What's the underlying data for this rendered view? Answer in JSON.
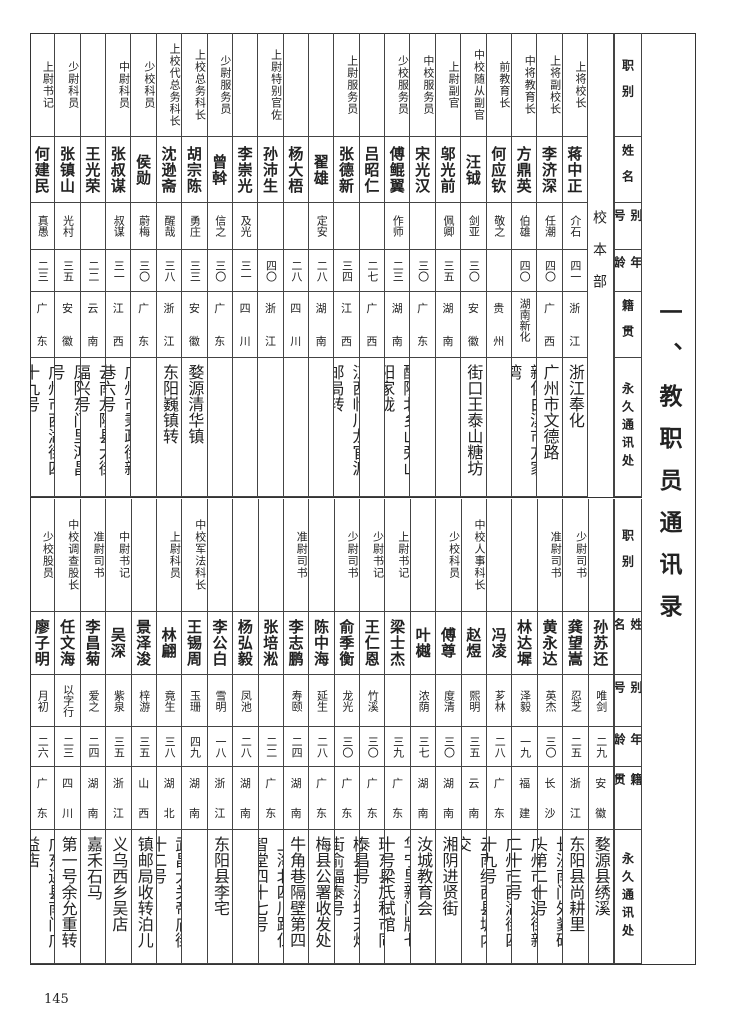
{
  "title": "一、教职员通讯录",
  "department": "校本部",
  "page_number": "145",
  "headers": [
    "职别",
    "姓名",
    "别号",
    "年龄",
    "籍贯",
    "永久通讯处"
  ],
  "top_rows": [
    {
      "job": "上将校长",
      "name": "蒋中正",
      "alias": "介石",
      "age": "四一",
      "origin": "浙江",
      "address": "浙江奉化"
    },
    {
      "job": "上将副校长",
      "name": "李济深",
      "alias": "任潮",
      "age": "四〇",
      "origin": "广西",
      "address": "广州市文德路"
    },
    {
      "job": "中将教育长",
      "name": "方鼎英",
      "alias": "伯雄",
      "age": "四〇",
      "origin": "湖南新化",
      "address": "新化白溪市方家湾"
    },
    {
      "job": "前教育长",
      "name": "何应钦",
      "alias": "敬之",
      "age": "",
      "origin": "贵州",
      "address": ""
    },
    {
      "job": "中校随从副官",
      "name": "汪钺",
      "alias": "剑亚",
      "age": "三〇",
      "origin": "安徽",
      "address": "南京城南唐福大街口王泰山糖坊转"
    },
    {
      "job": "上尉副官",
      "name": "邬光前",
      "alias": "佩卿",
      "age": "三五",
      "origin": "湖南",
      "address": ""
    },
    {
      "job": "中校服务员",
      "name": "宋光汉",
      "alias": "",
      "age": "三〇",
      "origin": "广东",
      "address": ""
    },
    {
      "job": "少校服务员",
      "name": "傅鲲翼",
      "alias": "作师",
      "age": "二三",
      "origin": "湖南",
      "address": "醴陵北乡山旁山阳家垅"
    },
    {
      "job": "",
      "name": "吕昭仁",
      "alias": "",
      "age": "二七",
      "origin": "广西",
      "address": ""
    },
    {
      "job": "上尉服务员",
      "name": "张德新",
      "alias": "",
      "age": "三四",
      "origin": "江西",
      "address": "江西临川龙官渡邮局转"
    },
    {
      "job": "",
      "name": "翟雄",
      "alias": "定安",
      "age": "二八",
      "origin": "湖南",
      "address": ""
    },
    {
      "job": "",
      "name": "杨大梧",
      "alias": "",
      "age": "二八",
      "origin": "四川",
      "address": ""
    },
    {
      "job": "上尉特别官佐",
      "name": "孙沛生",
      "alias": "",
      "age": "四〇",
      "origin": "浙江",
      "address": ""
    },
    {
      "job": "",
      "name": "李崇光",
      "alias": "及光",
      "age": "三一",
      "origin": "四川",
      "address": ""
    },
    {
      "job": "少尉服务员",
      "name": "曾斡",
      "alias": "信之",
      "age": "三〇",
      "origin": "广东",
      "address": ""
    },
    {
      "job": "上校总务科长",
      "name": "胡宗陈",
      "alias": "勇庄",
      "age": "三三",
      "origin": "安徽",
      "address": "婺源清华镇"
    },
    {
      "job": "上校代总务科长",
      "name": "沈逊斋",
      "alias": "醒哉",
      "age": "三八",
      "origin": "浙江",
      "address": "东阳巍镇转"
    },
    {
      "job": "少校科员",
      "name": "侯勋",
      "alias": "蔚梅",
      "age": "三〇",
      "origin": "广东",
      "address": ""
    },
    {
      "job": "中尉科员",
      "name": "张叔谋",
      "alias": "叔谋",
      "age": "三一",
      "origin": "江西",
      "address": "广州市秉政街新巷六号"
    },
    {
      "job": "",
      "name": "王光荣",
      "alias": "",
      "age": "二二",
      "origin": "云南",
      "address": "云南龙陵县大街福兴号"
    },
    {
      "job": "少尉科员",
      "name": "张镇山",
      "alias": "光村",
      "age": "三五",
      "origin": "安徽",
      "address": "凤阳东门里鸿昌号"
    },
    {
      "job": "上尉书记",
      "name": "何建民",
      "alias": "真愚",
      "age": "二三",
      "origin": "广东",
      "address": "广州市西湖街四十九号"
    }
  ],
  "bottom_rows": [
    {
      "job": "",
      "name": "孙苏还",
      "alias": "唯剑",
      "age": "二九",
      "origin": "安徽",
      "address": "婺源县绣溪"
    },
    {
      "job": "少尉司书",
      "name": "龚望嵩",
      "alias": "忍芝",
      "age": "二五",
      "origin": "浙江",
      "address": "东阳县尚耕里"
    },
    {
      "job": "准尉司书",
      "name": "黄永达",
      "alias": "英杰",
      "age": "三〇",
      "origin": "长沙",
      "address": "长沙南门外粪码头第二十号"
    },
    {
      "job": "",
      "name": "林达墀",
      "alias": "泽毅",
      "age": "一九",
      "origin": "福建",
      "address": "广州市仓边街新二十三号"
    },
    {
      "job": "",
      "name": "冯凌",
      "alias": "芗林",
      "age": "二八",
      "origin": "广东",
      "address": "广州市西湖街四十九号"
    },
    {
      "job": "中校人事科长",
      "name": "赵煜",
      "alias": "熙明",
      "age": "三五",
      "origin": "云南",
      "address": "云南维西县城内交"
    },
    {
      "job": "少校科员",
      "name": "傅尊",
      "alias": "度清",
      "age": "三〇",
      "origin": "湖南",
      "address": "湘阴进贤街"
    },
    {
      "job": "",
      "name": "叶樾",
      "alias": "浓荫",
      "age": "三七",
      "origin": "湖南",
      "address": "汝城教育会"
    },
    {
      "job": "上尉书记",
      "name": "梁士杰",
      "alias": "",
      "age": "三九",
      "origin": "广东",
      "address": "华宁里新门牌七十号梁氏试馆"
    },
    {
      "job": "少尉书记",
      "name": "王仁恩",
      "alias": "竹溪",
      "age": "三〇",
      "origin": "广东",
      "address": "琼东县加积市同泰昌号"
    },
    {
      "job": "少尉司书",
      "name": "俞季衡",
      "alias": "龙光",
      "age": "三〇",
      "origin": "广东",
      "address": "梅县长沙圩天灯街俞福泰号"
    },
    {
      "job": "",
      "name": "陈中海",
      "alias": "延生",
      "age": "二八",
      "origin": "广东",
      "address": "梅县公署收发处"
    },
    {
      "job": "准尉司书",
      "name": "李志鹏",
      "alias": "寿颐",
      "age": "二四",
      "origin": "湖南",
      "address": "湘阴县镇朔门大牛角巷隔壁第四号"
    },
    {
      "job": "",
      "name": "张培淞",
      "alias": "",
      "age": "二二",
      "origin": "广东",
      "address": "上海北四川路仁智堂四十七号"
    },
    {
      "job": "",
      "name": "杨弘毅",
      "alias": "凤池",
      "age": "二八",
      "origin": "湖南",
      "address": ""
    },
    {
      "job": "",
      "name": "李公白",
      "alias": "雪明",
      "age": "一八",
      "origin": "浙江",
      "address": "东阳县李宅"
    },
    {
      "job": "中校军法科长",
      "name": "王锡周",
      "alias": "玉珊",
      "age": "四九",
      "origin": "湖南",
      "address": ""
    },
    {
      "job": "上尉科员",
      "name": "林翩",
      "alias": "竟生",
      "age": "三八",
      "origin": "湖北",
      "address": "武昌大关帝庙街十二号"
    },
    {
      "job": "",
      "name": "景泽浚",
      "alias": "梓游",
      "age": "三五",
      "origin": "山西",
      "address": "临汾县城西金殿镇邮局收转泊儿村"
    },
    {
      "job": "中尉书记",
      "name": "吴深",
      "alias": "紫泉",
      "age": "三五",
      "origin": "浙江",
      "address": "义乌西乡吴店"
    },
    {
      "job": "准尉司书",
      "name": "李昌菊",
      "alias": "爱之",
      "age": "二四",
      "origin": "湖南",
      "address": "嘉禾石马"
    },
    {
      "job": "中校调查股长",
      "name": "任文海",
      "alias": "以字行",
      "age": "二三",
      "origin": "四川",
      "address": "广州西关鸭牌塘第一号余允重转交"
    },
    {
      "job": "少校股员",
      "name": "廖子明",
      "alias": "月初",
      "age": "二六",
      "origin": "广东",
      "address": "广东连县南门广益店"
    }
  ]
}
